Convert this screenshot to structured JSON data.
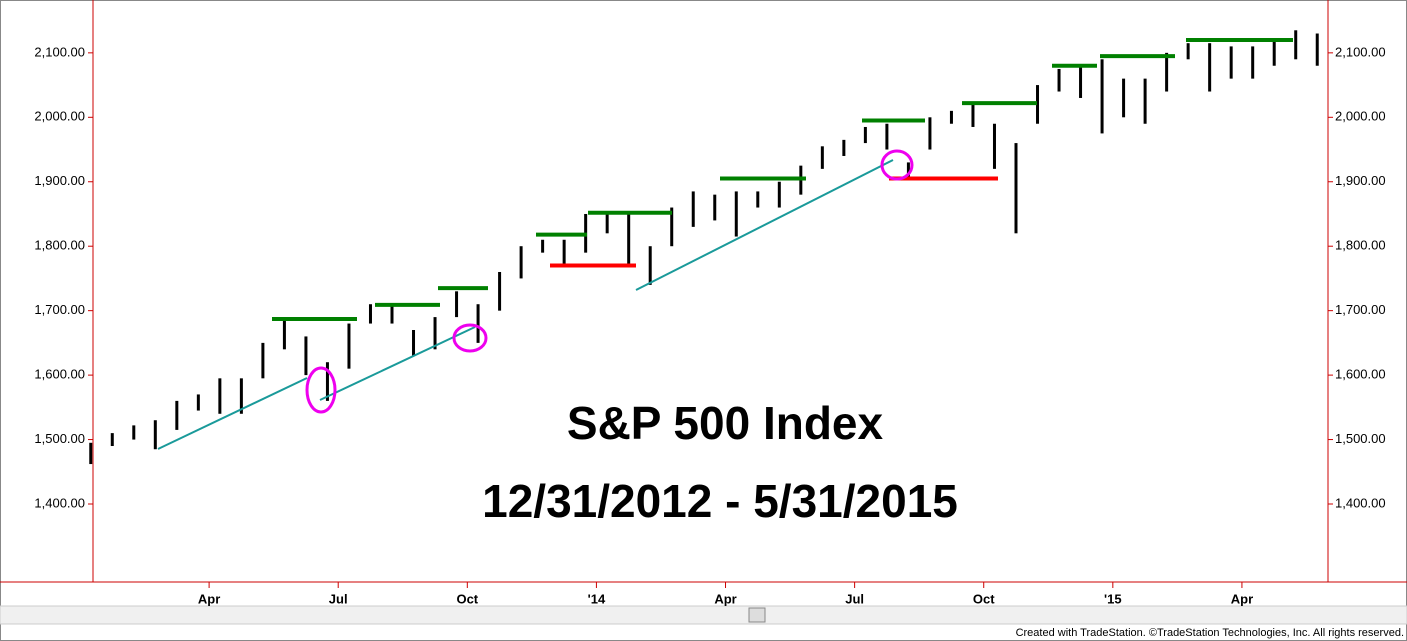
{
  "chart_data": {
    "type": "range",
    "title": "S&P 500 Index",
    "subtitle": "12/31/2012 - 5/31/2015",
    "footer": "Created with TradeStation. ©TradeStation Technologies, Inc. All rights reserved.",
    "categories": [
      null,
      null,
      null,
      null,
      null,
      null,
      "Apr",
      null,
      null,
      null,
      null,
      null,
      "Jul",
      null,
      null,
      null,
      null,
      null,
      "Oct",
      null,
      null,
      null,
      null,
      null,
      "'14",
      null,
      null,
      null,
      null,
      null,
      "Apr",
      null,
      null,
      null,
      null,
      null,
      "Jul",
      null,
      null,
      null,
      null,
      null,
      "Oct",
      null,
      null,
      null,
      null,
      null,
      "'15",
      null,
      null,
      null,
      null,
      null,
      "Apr",
      null,
      null,
      null
    ],
    "highs": [
      1495,
      1510,
      1522,
      1530,
      1560,
      1570,
      1595,
      1595,
      1650,
      1687,
      1660,
      1620,
      1680,
      1710,
      1710,
      1670,
      1690,
      1730,
      1710,
      1760,
      1800,
      1810,
      1810,
      1850,
      1850,
      1850,
      1800,
      1860,
      1885,
      1880,
      1885,
      1885,
      1900,
      1925,
      1955,
      1965,
      1985,
      1990,
      1930,
      2000,
      2010,
      2020,
      1990,
      1960,
      2050,
      2075,
      2080,
      2090,
      2060,
      2060,
      2100,
      2115,
      2115,
      2110,
      2110,
      2120,
      2135,
      2130
    ],
    "lows": [
      1462,
      1490,
      1500,
      1485,
      1515,
      1545,
      1540,
      1540,
      1595,
      1640,
      1600,
      1560,
      1610,
      1680,
      1680,
      1630,
      1640,
      1690,
      1650,
      1700,
      1750,
      1790,
      1770,
      1790,
      1820,
      1770,
      1740,
      1800,
      1830,
      1840,
      1815,
      1860,
      1860,
      1880,
      1920,
      1940,
      1960,
      1950,
      1905,
      1950,
      1990,
      1985,
      1920,
      1820,
      1990,
      2040,
      2030,
      1975,
      2000,
      1990,
      2040,
      2090,
      2040,
      2060,
      2060,
      2080,
      2090,
      2080
    ],
    "color": "#000000",
    "resistance_levels": [
      1687,
      1709,
      1735,
      1818,
      1852,
      1905,
      1995,
      2022,
      2080,
      2095,
      2120
    ],
    "resistance_color": "#008000",
    "support_levels": [
      1770,
      1905
    ],
    "support_color": "#ff0000",
    "ylim": [
      1279,
      2182
    ],
    "yticks": [
      {
        "value": 1400,
        "label": "1,400.00"
      },
      {
        "value": 1500,
        "label": "1,500.00"
      },
      {
        "value": 1600,
        "label": "1,600.00"
      },
      {
        "value": 1700,
        "label": "1,700.00"
      },
      {
        "value": 1800,
        "label": "1,800.00"
      },
      {
        "value": 1900,
        "label": "1,900.00"
      },
      {
        "value": 2000,
        "label": "2,000.00"
      },
      {
        "value": 2100,
        "label": "2,100.00"
      }
    ]
  }
}
